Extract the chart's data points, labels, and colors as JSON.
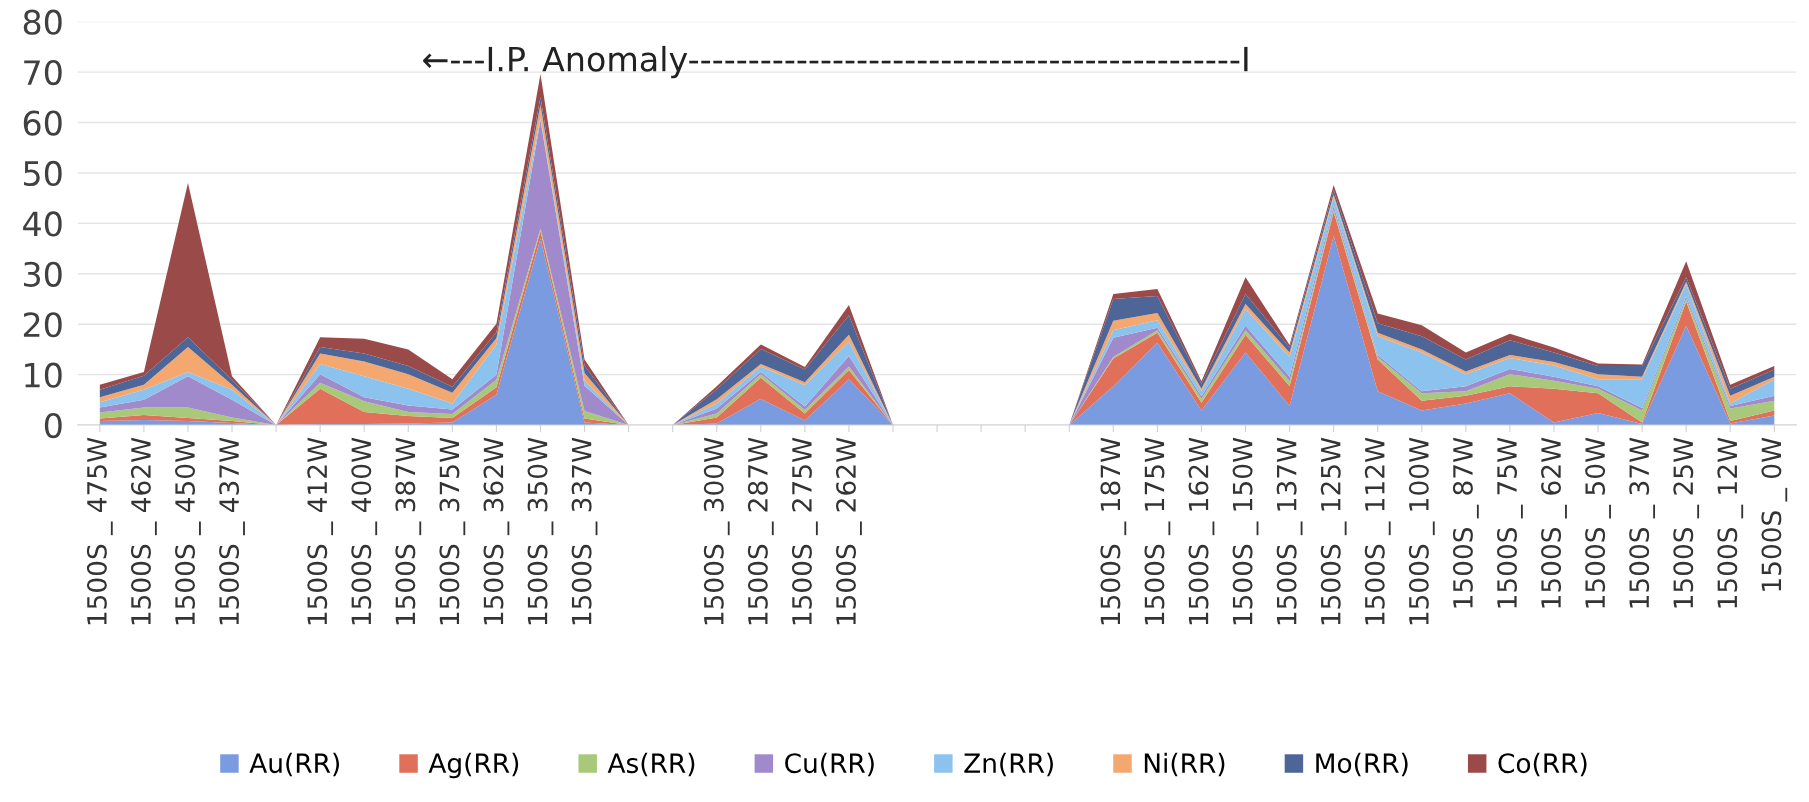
{
  "chart_data": {
    "type": "area",
    "stacked": true,
    "categories": [
      "1500S _ 475W",
      "1500S _ 462W",
      "1500S _ 450W",
      "1500S _ 437W",
      null,
      "1500S _ 412W",
      "1500S _ 400W",
      "1500S _ 387W",
      "1500S _ 375W",
      "1500S _ 362W",
      "1500S _ 350W",
      "1500S _ 337W",
      null,
      null,
      "1500S _ 300W",
      "1500S _ 287W",
      "1500S _ 275W",
      "1500S _ 262W",
      null,
      null,
      null,
      null,
      null,
      "1500S _ 187W",
      "1500S _ 175W",
      "1500S _ 162W",
      "1500S _ 150W",
      "1500S _ 137W",
      "1500S _ 125W",
      "1500S _ 112W",
      "1500S _ 100W",
      "1500S _ 87W",
      "1500S _ 75W",
      "1500S _ 62W",
      "1500S _ 50W",
      "1500S _ 37W",
      "1500S _ 25W",
      "1500S _ 12W",
      "1500S _ 0W"
    ],
    "series": [
      {
        "name": "Au(RR)",
        "color": "#7b9be0",
        "values": [
          0.8,
          1,
          0.8,
          0.4,
          0,
          0.2,
          0.2,
          0.3,
          0.5,
          6,
          37,
          0.5,
          0,
          0,
          0.3,
          5.2,
          0.9,
          9.1,
          0,
          0,
          0,
          0,
          0,
          7.7,
          16.3,
          2.9,
          14.4,
          3.8,
          37.5,
          6.7,
          2.9,
          4.3,
          6.3,
          0.5,
          2.4,
          0.2,
          19.7,
          0.3,
          1.9
        ]
      },
      {
        "name": "Ag(RR)",
        "color": "#e0705a",
        "values": [
          0.5,
          1,
          0.6,
          0.4,
          0,
          7,
          2.4,
          1.5,
          0.9,
          1.5,
          1.5,
          0.8,
          0,
          0,
          1.2,
          4.2,
          1.4,
          1.8,
          0,
          0,
          0,
          0,
          0,
          5.5,
          2,
          1.5,
          3.5,
          3.9,
          4.8,
          6.3,
          1.9,
          1.5,
          1.4,
          6.7,
          3.9,
          0.3,
          4.8,
          0.5,
          1
        ]
      },
      {
        "name": "As(RR)",
        "color": "#a9c97a",
        "values": [
          1.2,
          1.5,
          2.1,
          0.7,
          0,
          1.2,
          2.1,
          0.8,
          0.8,
          1.5,
          0.5,
          1.5,
          0,
          0,
          0.8,
          0.7,
          0.7,
          0.7,
          0,
          0,
          0,
          0,
          0,
          0.3,
          0.5,
          0.8,
          0.9,
          1,
          0.5,
          0.5,
          1.5,
          0.9,
          2.4,
          1.6,
          0.9,
          2.4,
          0.5,
          2.5,
          1.9
        ]
      },
      {
        "name": "Cu(RR)",
        "color": "#a08acb",
        "values": [
          1,
          1.5,
          6.2,
          3.5,
          0,
          1.7,
          0.8,
          1.3,
          0.9,
          1,
          21.5,
          5,
          0,
          0,
          1,
          0.4,
          0.7,
          2.1,
          0,
          0,
          0,
          0,
          0,
          3.8,
          0.5,
          0.5,
          0.9,
          0.9,
          0.7,
          0.4,
          0.4,
          1,
          1,
          0.8,
          0.5,
          0.5,
          0.5,
          0.5,
          1
        ]
      },
      {
        "name": "Zn(RR)",
        "color": "#8cc3ee",
        "values": [
          1,
          2,
          0.8,
          2,
          0,
          2,
          4.2,
          3.3,
          1.2,
          6,
          0.5,
          1,
          0,
          0,
          1,
          1.1,
          4.2,
          2.8,
          0,
          0,
          0,
          0,
          0,
          1.5,
          1.5,
          1,
          3.3,
          3.9,
          1.7,
          3.7,
          7.7,
          2.4,
          2.2,
          2.2,
          1.4,
          5.7,
          2.4,
          0.5,
          3.3
        ]
      },
      {
        "name": "Ni(RR)",
        "color": "#f4a870",
        "values": [
          1,
          1,
          5,
          1,
          0,
          2.1,
          2.9,
          2.9,
          2.1,
          1.2,
          2.5,
          1.5,
          0,
          0,
          0.8,
          0.5,
          0.6,
          1.4,
          0,
          0,
          0,
          0,
          0,
          1.9,
          1.4,
          0.5,
          1,
          0.9,
          0.5,
          0.7,
          0.6,
          0.5,
          0.6,
          0.7,
          1,
          0.5,
          0.5,
          1.5,
          0.5
        ]
      },
      {
        "name": "Mo(RR)",
        "color": "#4e6598",
        "values": [
          1.5,
          1.8,
          1.9,
          1,
          0,
          1.3,
          1.6,
          1.6,
          1.2,
          1.2,
          1.5,
          1.5,
          0,
          0,
          2,
          3,
          2.5,
          3.9,
          0,
          0,
          0,
          0,
          0,
          4.3,
          3.4,
          1,
          2,
          1,
          0.9,
          1.9,
          2.6,
          2.4,
          2.9,
          1.9,
          1.6,
          2.1,
          0.9,
          1.4,
          1.4
        ]
      },
      {
        "name": "Co(RR)",
        "color": "#9b4a4a",
        "values": [
          1,
          0.7,
          30.6,
          0.7,
          0,
          1.9,
          2.9,
          3.3,
          1.5,
          1.7,
          4.6,
          1.2,
          0,
          0,
          0.6,
          0.9,
          0.5,
          2,
          0,
          0,
          0,
          0,
          0,
          1,
          1.4,
          0.5,
          3.3,
          0.5,
          1,
          1.9,
          2.2,
          1.4,
          1.3,
          1,
          0.5,
          0.3,
          3.2,
          0.8,
          0.7
        ]
      }
    ],
    "ylim": [
      0,
      80
    ],
    "yticks": [
      0,
      10,
      20,
      30,
      40,
      50,
      60,
      70,
      80
    ],
    "grid": "y",
    "legend": "bottom",
    "annotations": [
      "←---I.P. Anomaly----------------------------------------------I"
    ]
  }
}
